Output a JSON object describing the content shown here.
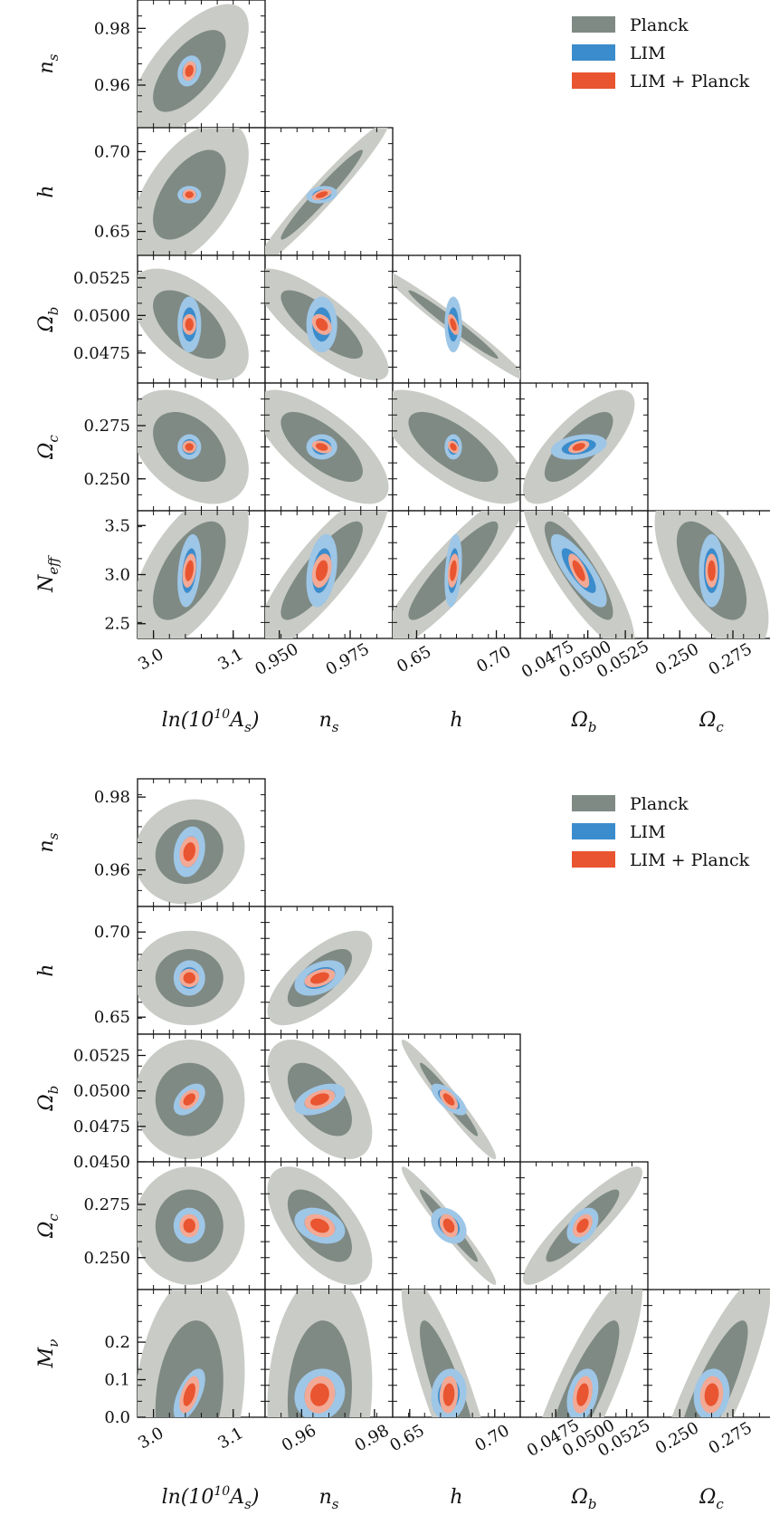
{
  "chart_data": [
    {
      "type": "triangle-contour",
      "legend": {
        "placement": "top-right",
        "entries": [
          "Planck",
          "LIM",
          "LIM + Planck"
        ]
      },
      "colors": {
        "planck_inner": "#7f8a85",
        "planck_outer": "#c9cbc6",
        "lim_inner": "#3a8ccc",
        "lim_outer": "#9ec6e6",
        "joint_inner": "#e85530",
        "joint_outer": "#f2a995"
      },
      "params": [
        {
          "key": "lnAs",
          "label": "ln(10¹⁰A_s)",
          "latex": "\\ln(10^{10}A_s)",
          "ticks": [
            3.0,
            3.1
          ],
          "tick_labels": [
            "3.0",
            "3.1"
          ],
          "range": [
            2.98,
            3.14
          ]
        },
        {
          "key": "ns",
          "label": "n_s",
          "ticks": [
            0.95,
            0.975
          ],
          "tick_labels": [
            "0.950",
            "0.975"
          ],
          "y_ticks": [
            0.96,
            0.98
          ],
          "y_tick_labels": [
            "0.96",
            "0.98"
          ],
          "range": [
            0.945,
            0.99
          ]
        },
        {
          "key": "h",
          "label": "h",
          "ticks": [
            0.65,
            0.7
          ],
          "tick_labels": [
            "0.65",
            "0.70"
          ],
          "range": [
            0.635,
            0.715
          ]
        },
        {
          "key": "Ob",
          "label": "Ω_b",
          "ticks": [
            0.0475,
            0.05,
            0.0525
          ],
          "tick_labels": [
            "0.0475",
            "0.0500",
            "0.0525"
          ],
          "range": [
            0.0455,
            0.054
          ]
        },
        {
          "key": "Oc",
          "label": "Ω_c",
          "ticks": [
            0.25,
            0.275
          ],
          "tick_labels": [
            "0.250",
            "0.275"
          ],
          "range": [
            0.235,
            0.295
          ]
        },
        {
          "key": "Neff",
          "label": "N_eff",
          "y_ticks": [
            2.5,
            3.0,
            3.5
          ],
          "y_tick_labels": [
            "2.5",
            "3.0",
            "3.5"
          ],
          "range": [
            2.35,
            3.65
          ]
        }
      ],
      "fiducial": {
        "lnAs": 3.045,
        "ns": 0.965,
        "h": 0.673,
        "Ob": 0.0494,
        "Oc": 0.265,
        "Neff": 3.04
      },
      "sigma": {
        "planck": {
          "lnAs": 0.03,
          "ns": 0.0095,
          "h": 0.0185,
          "Ob": 0.0015,
          "Oc": 0.0108,
          "Neff": 0.33
        },
        "lim": {
          "lnAs": 0.006,
          "ns": 0.0022,
          "h": 0.0022,
          "Ob": 0.00075,
          "Oc": 0.0024,
          "Neff": 0.15
        },
        "joint": {
          "lnAs": 0.0035,
          "ns": 0.0014,
          "h": 0.0014,
          "Ob": 0.00028,
          "Oc": 0.0012,
          "Neff": 0.07
        }
      },
      "correlation": {
        "planck": {
          "lnAs|ns": 0.65,
          "lnAs|h": 0.55,
          "ns|h": 0.97,
          "lnAs|Ob": -0.55,
          "ns|Ob": -0.8,
          "h|Ob": -0.98,
          "lnAs|Oc": -0.4,
          "ns|Oc": -0.7,
          "h|Oc": -0.7,
          "Ob|Oc": 0.75,
          "lnAs|Neff": 0.6,
          "ns|Neff": 0.85,
          "h|Neff": 0.9,
          "Ob|Neff": -0.85,
          "Oc|Neff": -0.6
        },
        "lim": {
          "lnAs|ns": 0.2,
          "lnAs|h": 0.0,
          "ns|h": 0.2,
          "lnAs|Ob": 0.0,
          "ns|Ob": 0.0,
          "h|Ob": 0.0,
          "lnAs|Oc": 0.0,
          "ns|Oc": 0.0,
          "h|Oc": 0.0,
          "Ob|Oc": 0.3,
          "lnAs|Neff": 0.3,
          "ns|Neff": 0.3,
          "h|Neff": 0.3,
          "Ob|Neff": -0.8,
          "Oc|Neff": 0.0
        },
        "joint": {
          "lnAs|ns": 0.2,
          "lnAs|h": 0.0,
          "ns|h": 0.5,
          "lnAs|Ob": 0.0,
          "ns|Ob": -0.3,
          "h|Ob": -0.5,
          "lnAs|Oc": 0.0,
          "ns|Oc": -0.3,
          "h|Oc": -0.3,
          "Ob|Oc": 0.4,
          "lnAs|Neff": 0.3,
          "ns|Neff": 0.3,
          "h|Neff": 0.3,
          "Ob|Neff": -0.7,
          "Oc|Neff": 0.0
        }
      }
    },
    {
      "type": "triangle-contour",
      "legend": {
        "placement": "top-right",
        "entries": [
          "Planck",
          "LIM",
          "LIM + Planck"
        ]
      },
      "colors": {
        "planck_inner": "#7f8a85",
        "planck_outer": "#c9cbc6",
        "lim_inner": "#3a8ccc",
        "lim_outer": "#9ec6e6",
        "joint_inner": "#e85530",
        "joint_outer": "#f2a995"
      },
      "params": [
        {
          "key": "lnAs",
          "label": "ln(10¹⁰A_s)",
          "latex": "\\ln(10^{10}A_s)",
          "ticks": [
            3.0,
            3.1
          ],
          "tick_labels": [
            "3.0",
            "3.1"
          ],
          "range": [
            2.98,
            3.14
          ]
        },
        {
          "key": "ns",
          "label": "n_s",
          "ticks": [
            0.96,
            0.98
          ],
          "tick_labels": [
            "0.96",
            "0.98"
          ],
          "y_ticks": [
            0.96,
            0.98
          ],
          "y_tick_labels": [
            "0.96",
            "0.98"
          ],
          "range": [
            0.95,
            0.985
          ]
        },
        {
          "key": "h",
          "label": "h",
          "ticks": [
            0.65,
            0.7
          ],
          "tick_labels": [
            "0.65",
            "0.70"
          ],
          "range": [
            0.64,
            0.715
          ]
        },
        {
          "key": "Ob",
          "label": "Ω_b",
          "ticks": [
            0.0475,
            0.05,
            0.0525
          ],
          "tick_labels": [
            "0.0475",
            "0.0500",
            "0.0525"
          ],
          "y_ticks": [
            0.045,
            0.0475,
            0.05,
            0.0525
          ],
          "y_tick_labels": [
            "0.0450",
            "0.0475",
            "0.0500",
            "0.0525"
          ],
          "range": [
            0.045,
            0.054
          ]
        },
        {
          "key": "Oc",
          "label": "Ω_c",
          "ticks": [
            0.25,
            0.275
          ],
          "tick_labels": [
            "0.250",
            "0.275"
          ],
          "range": [
            0.235,
            0.295
          ]
        },
        {
          "key": "Mnu",
          "label": "M_ν",
          "y_ticks": [
            0.0,
            0.1,
            0.2
          ],
          "y_tick_labels": [
            "0.0",
            "0.1",
            "0.2"
          ],
          "range": [
            0.0,
            0.34
          ]
        }
      ],
      "fiducial": {
        "lnAs": 3.045,
        "ns": 0.965,
        "h": 0.673,
        "Ob": 0.0494,
        "Oc": 0.265,
        "Mnu": 0.06
      },
      "sigma": {
        "planck": {
          "lnAs": 0.028,
          "ns": 0.0058,
          "h": 0.0112,
          "Ob": 0.0017,
          "Oc": 0.0112,
          "Mnu": 0.13
        },
        "lim": {
          "lnAs": 0.008,
          "ns": 0.0028,
          "h": 0.0042,
          "Ob": 0.00045,
          "Oc": 0.0034,
          "Mnu": 0.028
        },
        "joint": {
          "lnAs": 0.005,
          "ns": 0.0017,
          "h": 0.0022,
          "Ob": 0.00028,
          "Oc": 0.0022,
          "Mnu": 0.02
        }
      },
      "correlation": {
        "planck": {
          "lnAs|ns": 0.1,
          "lnAs|h": 0.0,
          "ns|h": 0.7,
          "lnAs|Ob": 0.0,
          "ns|Ob": -0.55,
          "h|Ob": -0.97,
          "lnAs|Oc": 0.0,
          "ns|Oc": -0.6,
          "h|Oc": -0.97,
          "Ob|Oc": 0.9,
          "lnAs|Neff": 0.0,
          "lnAs|Mnu": 0.2,
          "ns|Mnu": 0.1,
          "h|Mnu": -0.85,
          "Ob|Mnu": 0.85,
          "Oc|Mnu": 0.85
        },
        "lim": {
          "lnAs|ns": 0.2,
          "lnAs|h": 0.0,
          "ns|h": 0.4,
          "lnAs|Ob": 0.45,
          "ns|Ob": 0.45,
          "h|Ob": -0.7,
          "lnAs|Oc": 0.0,
          "ns|Oc": -0.3,
          "h|Oc": -0.3,
          "Ob|Oc": 0.4,
          "lnAs|Mnu": 0.6,
          "ns|Mnu": 0.1,
          "h|Mnu": 0.1,
          "Ob|Mnu": 0.3,
          "Oc|Mnu": 0.1
        },
        "joint": {
          "lnAs|ns": 0.2,
          "lnAs|h": 0.0,
          "ns|h": 0.4,
          "lnAs|Ob": 0.4,
          "ns|Ob": 0.4,
          "h|Ob": -0.6,
          "lnAs|Oc": 0.0,
          "ns|Oc": -0.3,
          "h|Oc": -0.3,
          "Ob|Oc": 0.4,
          "lnAs|Mnu": 0.5,
          "ns|Mnu": 0.1,
          "h|Mnu": 0.1,
          "Ob|Mnu": 0.3,
          "Oc|Mnu": 0.1
        }
      }
    }
  ]
}
